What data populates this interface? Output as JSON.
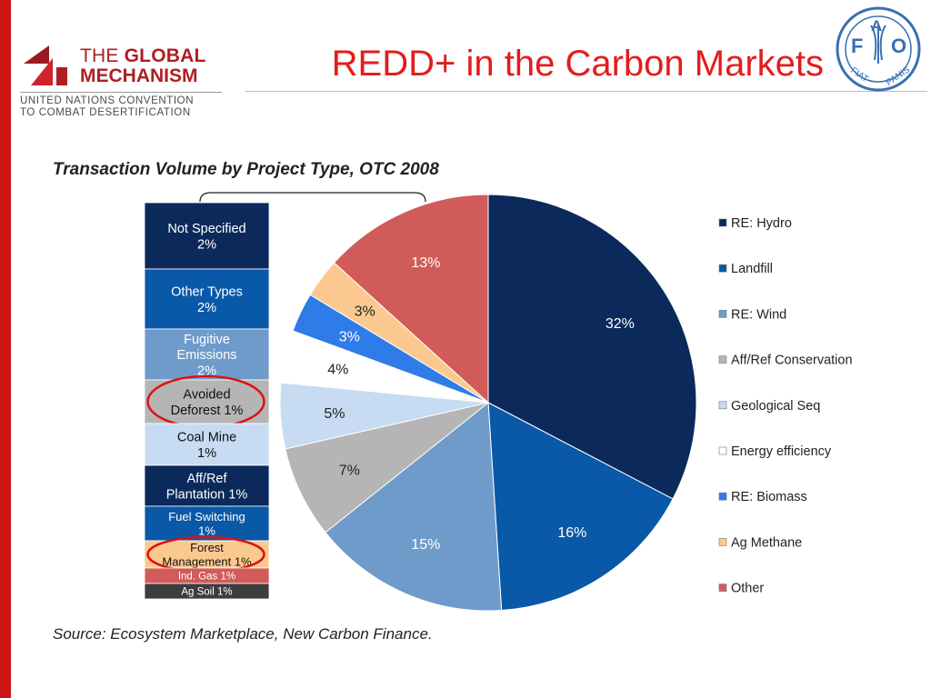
{
  "header": {
    "title": "REDD+ in the Carbon Markets",
    "logo_left": {
      "line1_plain": "THE ",
      "line1_bold": "GLOBAL",
      "line2": "MECHANISM",
      "sub1": "UNITED NATIONS CONVENTION",
      "sub2": "TO COMBAT DESERTIFICATION"
    },
    "logo_right": {
      "letters": [
        "F",
        "A",
        "O"
      ],
      "motto_left": "FIAT",
      "motto_right": "PANIS"
    }
  },
  "footer": {
    "source": "Source: Ecosystem Marketplace, New Carbon Finance."
  },
  "colors": {
    "accent_red": "#e41c1c",
    "highlight_circle": "#dd1111",
    "bar_red": "#cc1414"
  },
  "chart_data": [
    {
      "type": "pie",
      "title": "Transaction Volume by Project Type, OTC 2008",
      "start_angle_deg": 0,
      "direction": "clockwise",
      "legend_position": "right",
      "slices": [
        {
          "label": "RE: Hydro",
          "value": 32,
          "display": "32%",
          "color": "#0b2a5b"
        },
        {
          "label": "Landfill",
          "value": 16,
          "display": "16%",
          "color": "#0a58a8"
        },
        {
          "label": "RE: Wind",
          "value": 15,
          "display": "15%",
          "color": "#6f9bcb"
        },
        {
          "label": "Aff/Ref Conservation",
          "value": 7,
          "display": "7%",
          "color": "#b5b5b5"
        },
        {
          "label": "Geological Seq",
          "value": 5,
          "display": "5%",
          "color": "#c7dcf3"
        },
        {
          "label": "Energy efficiency",
          "value": 4,
          "display": "4%",
          "color": "#ffffff"
        },
        {
          "label": "RE: Biomass",
          "value": 3,
          "display": "3%",
          "color": "#2f7be8"
        },
        {
          "label": "Ag Methane",
          "value": 3,
          "display": "3%",
          "color": "#fbc98f"
        },
        {
          "label": "Other",
          "value": 13,
          "display": "13%",
          "color": "#d15b58"
        }
      ]
    },
    {
      "type": "bar",
      "orientation": "stacked-vertical",
      "description_of": "Other",
      "segments": [
        {
          "label": "Not Specified 2%",
          "value": 2,
          "color": "#0b2a5b",
          "text_color": "#ffffff"
        },
        {
          "label": "Other Types 2%",
          "value": 2,
          "color": "#0a58a8",
          "text_color": "#ffffff"
        },
        {
          "label": "Fugitive Emissions 2%",
          "value": 2,
          "color": "#6f9bcb",
          "text_color": "#ffffff"
        },
        {
          "label": "Avoided Deforest 1%",
          "value": 1,
          "color": "#b5b5b5",
          "text_color": "#111111",
          "highlighted": true
        },
        {
          "label": "Coal Mine 1%",
          "value": 1,
          "color": "#c7dcf3",
          "text_color": "#111111"
        },
        {
          "label": "Aff/Ref Plantation 1%",
          "value": 1,
          "color": "#0b2a5b",
          "text_color": "#ffffff"
        },
        {
          "label": "Fuel Switching 1%",
          "value": 1,
          "color": "#0a58a8",
          "text_color": "#ffffff"
        },
        {
          "label": "Forest Management 1%",
          "value": 1,
          "color": "#fbc98f",
          "text_color": "#111111",
          "highlighted": true
        },
        {
          "label": "Ind. Gas 1%",
          "value": 1,
          "color": "#d15b58",
          "text_color": "#ffffff"
        },
        {
          "label": "Ag Soil 1%",
          "value": 1,
          "color": "#3d3d3d",
          "text_color": "#ffffff"
        }
      ]
    }
  ]
}
